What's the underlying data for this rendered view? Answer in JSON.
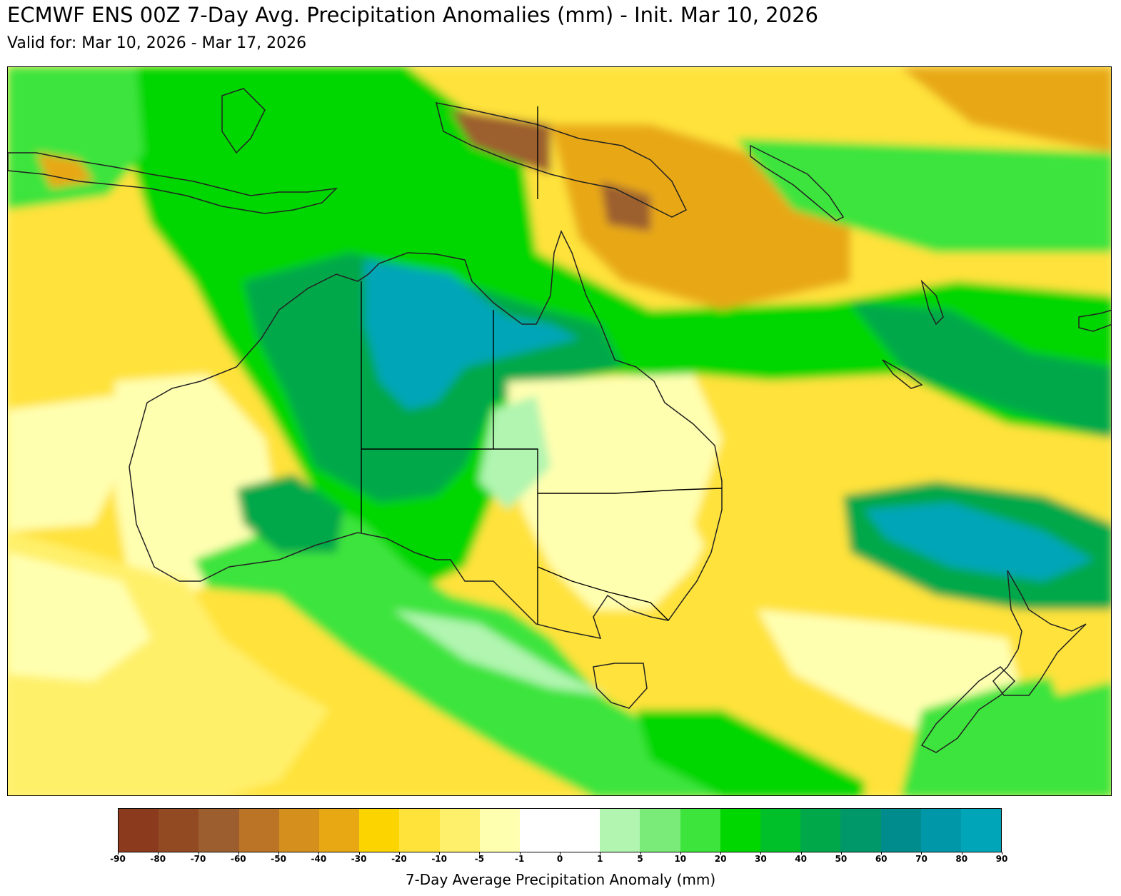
{
  "header": {
    "title": "ECMWF ENS 00Z 7-Day Avg. Precipitation Anomalies (mm) - Init. Mar 10, 2026",
    "subtitle": "Valid for: Mar 10, 2026 - Mar 17, 2026"
  },
  "colorbar": {
    "label": "7-Day Average Precipitation Anomaly (mm)",
    "ticks": [
      "-90",
      "-80",
      "-70",
      "-60",
      "-50",
      "-40",
      "-30",
      "-20",
      "-10",
      "-5",
      "-1",
      "0",
      "1",
      "5",
      "10",
      "20",
      "30",
      "40",
      "50",
      "60",
      "70",
      "80",
      "90"
    ],
    "colors": [
      "#8b3a1e",
      "#914a22",
      "#9c5e2e",
      "#bb7425",
      "#d58f1d",
      "#e8a814",
      "#fcd500",
      "#ffe23a",
      "#fff06b",
      "#ffffb0",
      "#ffffff",
      "#ffffff",
      "#b1f5b0",
      "#7aeb79",
      "#3de43c",
      "#00d600",
      "#00c02a",
      "#00a84a",
      "#009869",
      "#008b8c",
      "#0097a8",
      "#00a5b8"
    ],
    "palette": {
      "dry_light": "#ffffb0",
      "dry_yellow": "#fff06b",
      "dry_deep": "#ffe23a",
      "dry_orange": "#e8a814",
      "dry_brown": "#9c5e2e",
      "wet_light": "#b1f5b0",
      "wet_mid": "#3de43c",
      "wet_green": "#00d600",
      "wet_deep": "#00a84a",
      "wet_teal": "#00a5b8"
    }
  }
}
